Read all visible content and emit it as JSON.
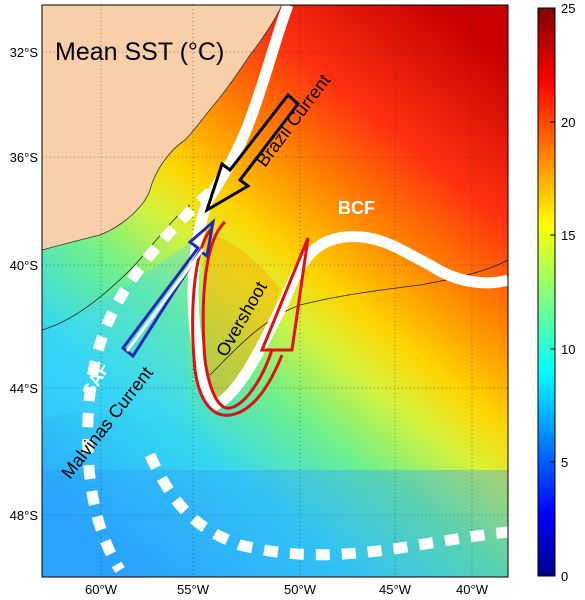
{
  "map": {
    "title": "Mean SST (°C)",
    "lat_ticks": [
      {
        "label": "32°S"
      },
      {
        "label": "36°S"
      },
      {
        "label": "40°S"
      },
      {
        "label": "44°S"
      },
      {
        "label": "48°S"
      }
    ],
    "lon_ticks": [
      {
        "label": "60°W"
      },
      {
        "label": "55°W"
      },
      {
        "label": "50°W"
      },
      {
        "label": "45°W"
      },
      {
        "label": "40°W"
      }
    ],
    "annotations": {
      "brazil_current": "Brazil Current",
      "bcf": "BCF",
      "overshoot": "Overshoot",
      "saf": "SAF",
      "malvinas_current": "Malvinas Current"
    }
  },
  "colorbar": {
    "colormap": "jet",
    "min": 0,
    "max": 25,
    "ticks": [
      "0",
      "5",
      "10",
      "15",
      "20",
      "25"
    ]
  },
  "colors": {
    "land": "#f8cfa9",
    "front_lines": "#ffffff",
    "brazil_arrow": "#000000",
    "malvinas_arrow": "#1f2bb5",
    "overshoot_arrow": "#e01010"
  }
}
